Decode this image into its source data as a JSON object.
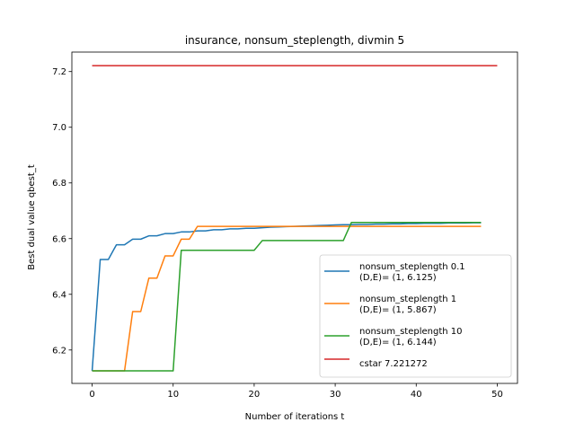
{
  "chart_data": {
    "type": "line",
    "title": "insurance, nonsum_steplength, divmin 5",
    "xlabel": "Number of iterations t",
    "ylabel": "Best dual value qbest_t",
    "xlim": [
      -2.5,
      52.5
    ],
    "ylim": [
      6.08,
      7.27
    ],
    "xticks": [
      0,
      10,
      20,
      30,
      40,
      50
    ],
    "yticks": [
      6.2,
      6.4,
      6.6,
      6.8,
      7.0,
      7.2
    ],
    "xtick_labels": [
      "0",
      "10",
      "20",
      "30",
      "40",
      "50"
    ],
    "ytick_labels": [
      "6.2",
      "6.4",
      "6.6",
      "6.8",
      "7.0",
      "7.2"
    ],
    "grid": false,
    "legend_position": "lower-right",
    "series": [
      {
        "name": "nonsum_steplength 0.1",
        "name_line2": "(D,E)= (1, 6.125)",
        "color": "#1f77b4",
        "x": [
          0,
          1,
          2,
          3,
          4,
          5,
          6,
          7,
          8,
          9,
          10,
          11,
          12,
          13,
          14,
          15,
          16,
          17,
          18,
          19,
          20,
          21,
          22,
          23,
          24,
          25,
          26,
          27,
          28,
          29,
          30,
          31,
          32,
          33,
          34,
          35,
          36,
          37,
          38,
          39,
          40,
          41,
          42,
          43,
          44,
          45,
          46,
          47,
          48
        ],
        "y": [
          6.125,
          6.525,
          6.525,
          6.578,
          6.578,
          6.598,
          6.598,
          6.61,
          6.61,
          6.618,
          6.618,
          6.624,
          6.624,
          6.628,
          6.628,
          6.632,
          6.632,
          6.635,
          6.635,
          6.637,
          6.637,
          6.639,
          6.641,
          6.642,
          6.643,
          6.644,
          6.645,
          6.646,
          6.647,
          6.648,
          6.649,
          6.65,
          6.65,
          6.651,
          6.651,
          6.652,
          6.652,
          6.653,
          6.653,
          6.654,
          6.654,
          6.655,
          6.655,
          6.655,
          6.656,
          6.656,
          6.656,
          6.657,
          6.657
        ]
      },
      {
        "name": "nonsum_steplength 1",
        "name_line2": "(D,E)= (1, 5.867)",
        "color": "#ff7f0e",
        "x": [
          0,
          1,
          2,
          3,
          4,
          5,
          6,
          7,
          8,
          9,
          10,
          11,
          12,
          13,
          14,
          15,
          16,
          17,
          18,
          19,
          20,
          21,
          22,
          23,
          24,
          25,
          26,
          27,
          28,
          29,
          30,
          31,
          32,
          33,
          34,
          35,
          36,
          37,
          38,
          39,
          40,
          41,
          42,
          43,
          44,
          45,
          46,
          47,
          48
        ],
        "y": [
          6.125,
          6.125,
          6.125,
          6.125,
          6.125,
          6.338,
          6.338,
          6.458,
          6.458,
          6.538,
          6.538,
          6.598,
          6.598,
          6.644,
          6.644,
          6.644,
          6.644,
          6.644,
          6.644,
          6.644,
          6.644,
          6.644,
          6.644,
          6.644,
          6.644,
          6.644,
          6.644,
          6.644,
          6.644,
          6.644,
          6.644,
          6.644,
          6.644,
          6.644,
          6.644,
          6.644,
          6.644,
          6.644,
          6.644,
          6.644,
          6.644,
          6.644,
          6.644,
          6.644,
          6.644,
          6.644,
          6.644,
          6.644,
          6.644
        ]
      },
      {
        "name": "nonsum_steplength 10",
        "name_line2": "(D,E)= (1, 6.144)",
        "color": "#2ca02c",
        "x": [
          0,
          1,
          2,
          3,
          4,
          5,
          6,
          7,
          8,
          9,
          10,
          11,
          12,
          13,
          14,
          15,
          16,
          17,
          18,
          19,
          20,
          21,
          22,
          23,
          24,
          25,
          26,
          27,
          28,
          29,
          30,
          31,
          32,
          33,
          34,
          35,
          36,
          37,
          38,
          39,
          40,
          41,
          42,
          43,
          44,
          45,
          46,
          47,
          48
        ],
        "y": [
          6.125,
          6.125,
          6.125,
          6.125,
          6.125,
          6.125,
          6.125,
          6.125,
          6.125,
          6.125,
          6.125,
          6.558,
          6.558,
          6.558,
          6.558,
          6.558,
          6.558,
          6.558,
          6.558,
          6.558,
          6.558,
          6.593,
          6.593,
          6.593,
          6.593,
          6.593,
          6.593,
          6.593,
          6.593,
          6.593,
          6.593,
          6.593,
          6.658,
          6.658,
          6.658,
          6.658,
          6.658,
          6.658,
          6.658,
          6.658,
          6.658,
          6.658,
          6.658,
          6.658,
          6.658,
          6.658,
          6.658,
          6.658,
          6.658
        ]
      },
      {
        "name": "cstar 7.221272",
        "name_line2": "",
        "color": "#d62728",
        "x": [
          0,
          50
        ],
        "y": [
          7.221272,
          7.221272
        ]
      }
    ]
  }
}
